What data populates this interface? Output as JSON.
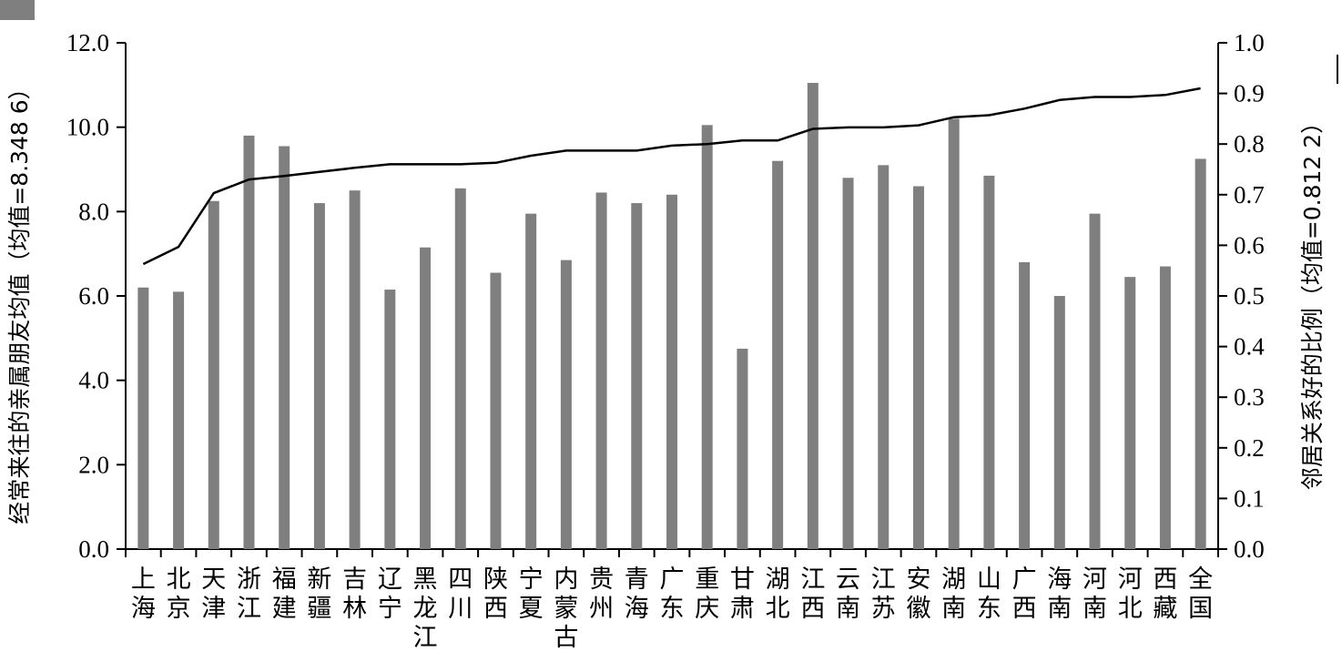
{
  "chart_data": {
    "type": "bar",
    "title": "",
    "categories": [
      "上海",
      "北京",
      "天津",
      "浙江",
      "福建",
      "新疆",
      "吉林",
      "辽宁",
      "黑龙江",
      "四川",
      "陕西",
      "宁夏",
      "内蒙古",
      "贵州",
      "青海",
      "广东",
      "重庆",
      "甘肃",
      "湖北",
      "江西",
      "云南",
      "江苏",
      "安徽",
      "湖南",
      "山东",
      "广西",
      "海南",
      "河南",
      "河北",
      "西藏",
      "全国"
    ],
    "series": [
      {
        "type": "bar",
        "axis": "left",
        "values": [
          6.2,
          6.1,
          8.25,
          9.8,
          9.55,
          8.2,
          8.5,
          6.15,
          7.15,
          8.55,
          6.55,
          7.95,
          6.85,
          8.45,
          8.2,
          8.4,
          10.05,
          4.75,
          9.2,
          11.05,
          8.8,
          9.1,
          8.6,
          10.2,
          8.85,
          6.8,
          6.0,
          7.95,
          6.45,
          6.7,
          9.25
        ],
        "color": "#7f7f7f"
      },
      {
        "type": "line",
        "axis": "right",
        "values": [
          0.563,
          0.597,
          0.703,
          0.73,
          0.737,
          0.745,
          0.753,
          0.76,
          0.76,
          0.76,
          0.763,
          0.777,
          0.787,
          0.787,
          0.787,
          0.797,
          0.8,
          0.807,
          0.807,
          0.83,
          0.833,
          0.833,
          0.837,
          0.853,
          0.857,
          0.87,
          0.887,
          0.893,
          0.893,
          0.897,
          0.91
        ],
        "color": "#000000"
      }
    ],
    "ylabel": "经常来往的亲属朋友均值（均值=8.348 6）",
    "y2label": "邻居关系好的比例（均值=0.812 2）",
    "ylim": [
      0,
      12
    ],
    "y2lim": [
      0,
      1
    ],
    "yticks": [
      "0.0",
      "2.0",
      "4.0",
      "6.0",
      "8.0",
      "10.0",
      "12.0"
    ],
    "y2ticks": [
      "0.0",
      "0.1",
      "0.2",
      "0.3",
      "0.4",
      "0.5",
      "0.6",
      "0.7",
      "0.8",
      "0.9",
      "1.0"
    ],
    "legend": "top-left, partially visible",
    "grid": false
  }
}
